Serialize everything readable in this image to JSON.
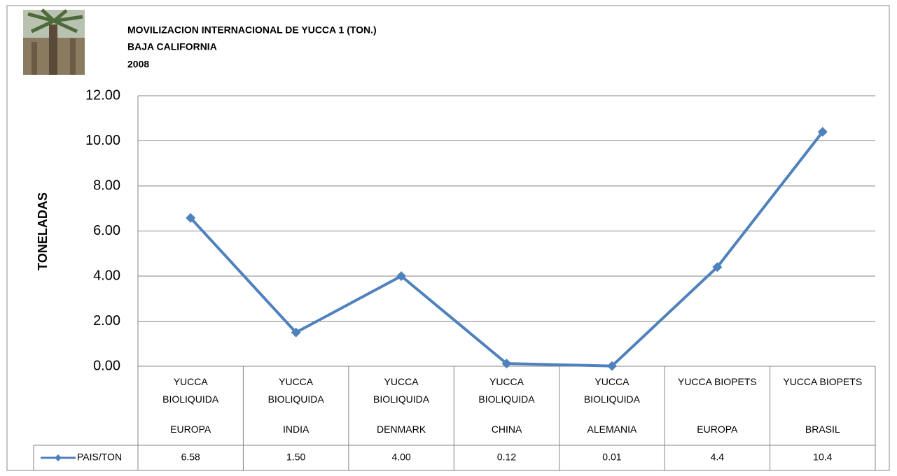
{
  "chart_data": {
    "type": "line",
    "title": "MOVILIZACION INTERNACIONAL DE YUCCA  1 (TON.)",
    "subtitle": "BAJA CALIFORNIA",
    "year": "2008",
    "y_label": "TONELADAS",
    "categories": [
      [
        "YUCCA BIOLIQUIDA",
        "EUROPA"
      ],
      [
        "YUCCA BIOLIQUIDA",
        "INDIA"
      ],
      [
        "YUCCA BIOLIQUIDA",
        "DENMARK"
      ],
      [
        "YUCCA BIOLIQUIDA",
        "CHINA"
      ],
      [
        "YUCCA BIOLIQUIDA",
        "ALEMANIA"
      ],
      [
        "YUCCA BIOPETS",
        "EUROPA"
      ],
      [
        "YUCCA BIOPETS",
        "BRASIL"
      ]
    ],
    "series": [
      {
        "name": "PAIS/TON",
        "color": "#4f81bd",
        "values": [
          6.58,
          1.5,
          4.0,
          0.12,
          0.01,
          4.4,
          10.4
        ],
        "value_labels": [
          "6.58",
          "1.50",
          "4.00",
          "0.12",
          "0.01",
          "4.4",
          "10.4"
        ]
      }
    ],
    "ylim": [
      0,
      12
    ],
    "yticks": [
      {
        "value": 0,
        "label": "0.00"
      },
      {
        "value": 2,
        "label": "2.00"
      },
      {
        "value": 4,
        "label": "4.00"
      },
      {
        "value": 6,
        "label": "6.00"
      },
      {
        "value": 8,
        "label": "8.00"
      },
      {
        "value": 10,
        "label": "10.00"
      },
      {
        "value": 12,
        "label": "12.00"
      }
    ],
    "grid": true
  }
}
